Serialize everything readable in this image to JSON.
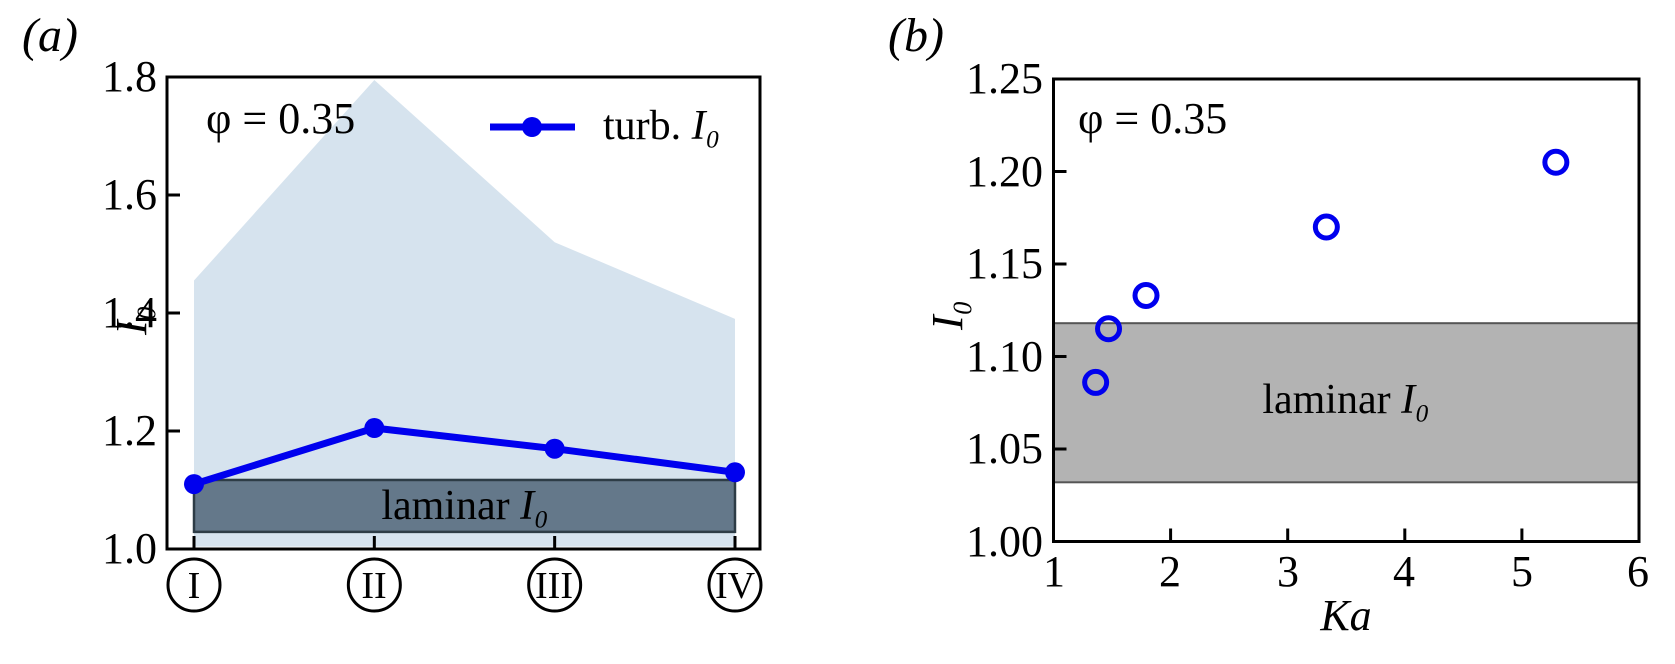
{
  "figure": {
    "panel_a_label": "(a)",
    "panel_b_label": "(b)"
  },
  "colors": {
    "line_blue": "#0000ee",
    "envelope_blue": "#d6e3ee",
    "laminar_band_a_fill": "#64788a",
    "laminar_band_a_border": "#2d3c46",
    "laminar_band_b_fill": "#b3b3b3",
    "laminar_band_b_border": "#555555",
    "axis_black": "#000000"
  },
  "chart_data": [
    {
      "panel": "a",
      "type": "line",
      "annotation": "φ = 0.35",
      "ylabel": "I₀",
      "ylim": [
        1.0,
        1.8
      ],
      "ytick_labels": [
        "1.8",
        "1.6",
        "1.4",
        "1.2",
        "1.0"
      ],
      "ytick_marks": [
        1.6,
        1.4,
        1.2
      ],
      "x_categories": [
        "I",
        "II",
        "III",
        "IV"
      ],
      "series": [
        {
          "name": "turb. I₀",
          "values": [
            1.11,
            1.205,
            1.17,
            1.13
          ]
        }
      ],
      "envelope": {
        "top": [
          1.455,
          1.795,
          1.52,
          1.39
        ],
        "bottom": 1.004
      },
      "laminar_band": {
        "from": 1.029,
        "to": 1.117,
        "label": "laminar I₀",
        "label_prefix": "laminar ",
        "label_math": "I₀"
      },
      "legend": {
        "position": "upper right",
        "entry": "turb. I₀",
        "prefix": "turb. ",
        "math": "I₀"
      }
    },
    {
      "panel": "b",
      "type": "scatter",
      "annotation": "φ = 0.35",
      "xlabel": "Ka",
      "ylabel": "I₀",
      "xlim": [
        1,
        6
      ],
      "ylim": [
        1.0,
        1.25
      ],
      "xtick_labels": [
        "1",
        "2",
        "3",
        "4",
        "5",
        "6"
      ],
      "xtick_marks": [
        2,
        3,
        4,
        5
      ],
      "ytick_labels": [
        "1.25",
        "1.20",
        "1.15",
        "1.10",
        "1.05",
        "1.00"
      ],
      "ytick_marks": [
        1.2,
        1.15,
        1.1,
        1.05
      ],
      "points": {
        "x": [
          1.36,
          1.47,
          1.79,
          3.33,
          5.29
        ],
        "y": [
          1.086,
          1.115,
          1.133,
          1.17,
          1.205
        ]
      },
      "marker": "open-circle",
      "laminar_band": {
        "from": 1.032,
        "to": 1.118,
        "label": "laminar I₀",
        "label_prefix": "laminar ",
        "label_math": "I₀"
      }
    }
  ]
}
